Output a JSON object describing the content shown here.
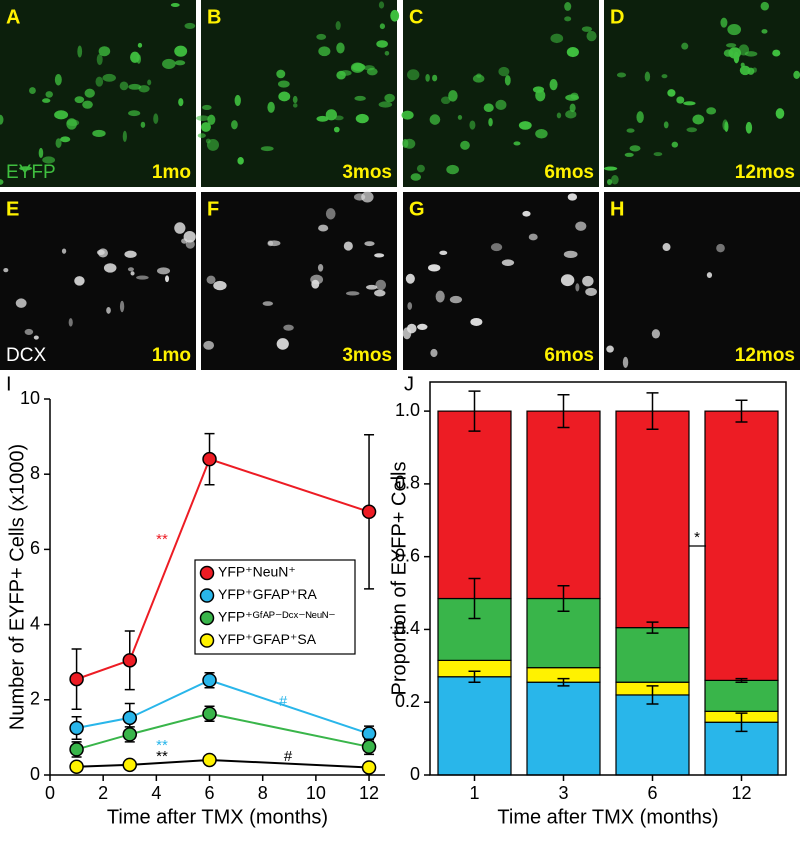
{
  "images": [
    {
      "letter": "A",
      "stain": "EYFP",
      "time": "1mo"
    },
    {
      "letter": "B",
      "time": "3mos"
    },
    {
      "letter": "C",
      "time": "6mos"
    },
    {
      "letter": "D",
      "time": "12mos"
    },
    {
      "letter": "E",
      "stain": "DCX",
      "time": "1mo"
    },
    {
      "letter": "F",
      "time": "3mos"
    },
    {
      "letter": "G",
      "time": "6mos"
    },
    {
      "letter": "H",
      "time": "12mos"
    }
  ],
  "chart_data": [
    {
      "type": "line",
      "panel": "I",
      "xlabel": "Time after TMX (months)",
      "ylabel": "Number of EYFP+ Cells (x1000)",
      "x": [
        1,
        3,
        6,
        12
      ],
      "xlim": [
        0,
        12.6
      ],
      "xticks": [
        0,
        2,
        4,
        6,
        8,
        10,
        12
      ],
      "ylim": [
        0,
        10
      ],
      "yticks": [
        0,
        2,
        4,
        6,
        8,
        10
      ],
      "legend": "center right",
      "series": [
        {
          "name": "YFP⁺NeuN⁺",
          "color": "#ed1c24",
          "line_color": "#ed1c24",
          "values": [
            2.55,
            3.05,
            8.4,
            7.0
          ],
          "errors": [
            0.8,
            0.78,
            0.68,
            2.05
          ]
        },
        {
          "name": "YFP⁺GFAP⁺RA",
          "color": "#29b6ea",
          "line_color": "#29b6ea",
          "values": [
            1.25,
            1.52,
            2.52,
            1.1
          ],
          "errors": [
            0.3,
            0.38,
            0.2,
            0.2
          ]
        },
        {
          "name": "YFP⁺ᴳᶠᴬᴾ⁻ᴰᶜˣ⁻ᴺᵉᵘᴺ⁻",
          "color": "#39b54a",
          "line_color": "#39b54a",
          "values": [
            0.68,
            1.08,
            1.63,
            0.75
          ],
          "errors": [
            0.2,
            0.2,
            0.2,
            0.2
          ]
        },
        {
          "name": "YFP⁺GFAP⁺SA",
          "color": "#fff200",
          "line_color": "#000000",
          "values": [
            0.22,
            0.27,
            0.4,
            0.2
          ],
          "errors": [
            0.1,
            0.1,
            0.05,
            0.08
          ]
        }
      ],
      "annotations": [
        {
          "text": "**",
          "color": "#ed1c24"
        },
        {
          "text": "**",
          "color": "#29b6ea"
        },
        {
          "text": "#",
          "color": "#29b6ea"
        },
        {
          "text": "**",
          "color": "#000000"
        },
        {
          "text": "#",
          "color": "#000000"
        }
      ]
    },
    {
      "type": "stacked_bar",
      "panel": "J",
      "xlabel": "Time after TMX (months)",
      "ylabel": "Proportion of EYFP+ Cells",
      "categories": [
        "1",
        "3",
        "6",
        "12"
      ],
      "ylim": [
        0,
        1.08
      ],
      "yticks": [
        0,
        0.2,
        0.4,
        0.6,
        0.8,
        {
          "value": 1,
          "label": "1.0"
        }
      ],
      "series": [
        {
          "color": "#29b6ea",
          "values": [
            0.27,
            0.255,
            0.22,
            0.145
          ],
          "errors": [
            0.015,
            0.01,
            0.025,
            0.025
          ]
        },
        {
          "color": "#fff200",
          "values": [
            0.045,
            0.04,
            0.035,
            0.03
          ]
        },
        {
          "color": "#39b54a",
          "values": [
            0.17,
            0.19,
            0.15,
            0.085
          ],
          "errors": [
            0.055,
            0.035,
            0.015,
            0.005
          ]
        },
        {
          "color": "#ed1c24",
          "values": [
            0.515,
            0.515,
            0.595,
            0.74
          ],
          "errors": [
            0.055,
            0.045,
            0.05,
            0.03
          ]
        }
      ],
      "annotations": [
        {
          "text": "*",
          "color": "#000000"
        }
      ]
    }
  ]
}
